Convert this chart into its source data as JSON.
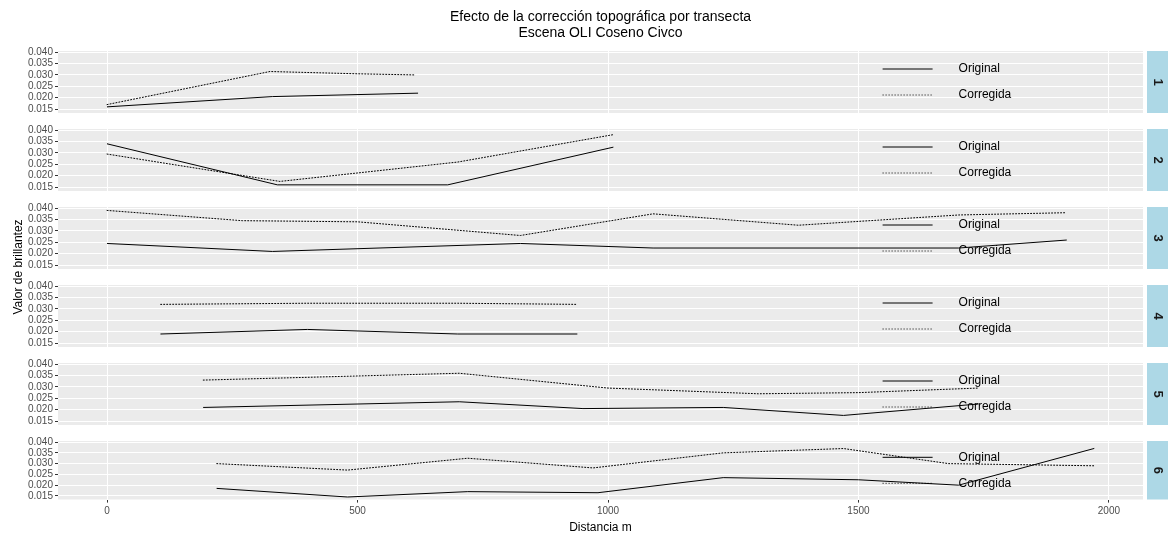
{
  "chart_data": [
    {
      "type": "line",
      "title": "Efecto de la corrección topográfica por transecta",
      "subtitle": "Escena OLI Coseno Civco",
      "annotations": [
        "1"
      ],
      "xlim": [
        -98,
        2068
      ],
      "xticks": [
        0,
        500,
        1000,
        1500,
        2000
      ],
      "ylim": [
        0.0133,
        0.0405
      ],
      "yticks": [
        {
          "value": 0.015,
          "label": "0.015"
        },
        {
          "value": 0.02,
          "label": "0.020"
        },
        {
          "value": 0.025,
          "label": "0.025"
        },
        {
          "value": 0.03,
          "label": "0.030"
        },
        {
          "value": 0.035,
          "label": "0.035"
        },
        {
          "value": 0.04,
          "label": "0.040"
        }
      ],
      "tick_labels": "y",
      "grid": true,
      "legend": "right",
      "marker": "none",
      "series": [
        {
          "name": "Original",
          "color": "#000000",
          "line_style": "solid",
          "x": [
            0,
            330,
            620
          ],
          "values": [
            0.016,
            0.0205,
            0.022
          ]
        },
        {
          "name": "Corregida",
          "color": "#000000",
          "line_style": "dotted",
          "x": [
            0,
            325,
            500,
            615
          ],
          "values": [
            0.017,
            0.0315,
            0.0305,
            0.03
          ]
        }
      ]
    },
    {
      "type": "line",
      "annotations": [
        "2"
      ],
      "xlim": [
        -98,
        2068
      ],
      "xticks": [
        0,
        500,
        1000,
        1500,
        2000
      ],
      "ylim": [
        0.0133,
        0.0405
      ],
      "yticks": [
        {
          "value": 0.015,
          "label": "0.015"
        },
        {
          "value": 0.02,
          "label": "0.020"
        },
        {
          "value": 0.025,
          "label": "0.025"
        },
        {
          "value": 0.03,
          "label": "0.030"
        },
        {
          "value": 0.035,
          "label": "0.035"
        },
        {
          "value": 0.04,
          "label": "0.040"
        }
      ],
      "tick_labels": "y",
      "grid": true,
      "legend": "right",
      "marker": "none",
      "series": [
        {
          "name": "Original",
          "color": "#000000",
          "line_style": "solid",
          "x": [
            0,
            340,
            680,
            1010
          ],
          "values": [
            0.034,
            0.016,
            0.016,
            0.0325
          ]
        },
        {
          "name": "Corregida",
          "color": "#000000",
          "line_style": "dotted",
          "x": [
            0,
            345,
            700,
            1010
          ],
          "values": [
            0.0295,
            0.0175,
            0.026,
            0.038
          ]
        }
      ]
    },
    {
      "type": "line",
      "annotations": [
        "3"
      ],
      "ylabel": "Valor de brillantez",
      "xlim": [
        -98,
        2068
      ],
      "xticks": [
        0,
        500,
        1000,
        1500,
        2000
      ],
      "ylim": [
        0.0133,
        0.0405
      ],
      "yticks": [
        {
          "value": 0.015,
          "label": "0.015"
        },
        {
          "value": 0.02,
          "label": "0.020"
        },
        {
          "value": 0.025,
          "label": "0.025"
        },
        {
          "value": 0.03,
          "label": "0.030"
        },
        {
          "value": 0.035,
          "label": "0.035"
        },
        {
          "value": 0.04,
          "label": "0.040"
        }
      ],
      "tick_labels": "y",
      "grid": true,
      "legend": "right",
      "marker": "none",
      "series": [
        {
          "name": "Original",
          "color": "#000000",
          "line_style": "solid",
          "x": [
            0,
            330,
            825,
            1090,
            1700,
            1915
          ],
          "values": [
            0.0245,
            0.021,
            0.0245,
            0.0225,
            0.0225,
            0.026
          ]
        },
        {
          "name": "Corregida",
          "color": "#000000",
          "line_style": "dotted",
          "x": [
            0,
            270,
            500,
            825,
            1090,
            1380,
            1700,
            1915
          ],
          "values": [
            0.039,
            0.0345,
            0.034,
            0.028,
            0.0375,
            0.0325,
            0.037,
            0.038
          ]
        }
      ]
    },
    {
      "type": "line",
      "annotations": [
        "4"
      ],
      "xlim": [
        -98,
        2068
      ],
      "xticks": [
        0,
        500,
        1000,
        1500,
        2000
      ],
      "ylim": [
        0.0133,
        0.0405
      ],
      "yticks": [
        {
          "value": 0.015,
          "label": "0.015"
        },
        {
          "value": 0.02,
          "label": "0.020"
        },
        {
          "value": 0.025,
          "label": "0.025"
        },
        {
          "value": 0.03,
          "label": "0.030"
        },
        {
          "value": 0.035,
          "label": "0.035"
        },
        {
          "value": 0.04,
          "label": "0.040"
        }
      ],
      "tick_labels": "y",
      "grid": true,
      "legend": "right",
      "marker": "none",
      "series": [
        {
          "name": "Original",
          "color": "#000000",
          "line_style": "solid",
          "x": [
            107,
            400,
            700,
            938
          ],
          "values": [
            0.019,
            0.021,
            0.019,
            0.019
          ]
        },
        {
          "name": "Corregida",
          "color": "#000000",
          "line_style": "dotted",
          "x": [
            107,
            400,
            700,
            938
          ],
          "values": [
            0.032,
            0.0325,
            0.0325,
            0.032
          ]
        }
      ]
    },
    {
      "type": "line",
      "annotations": [
        "5"
      ],
      "xlim": [
        -98,
        2068
      ],
      "xticks": [
        0,
        500,
        1000,
        1500,
        2000
      ],
      "ylim": [
        0.0133,
        0.0405
      ],
      "yticks": [
        {
          "value": 0.015,
          "label": "0.015"
        },
        {
          "value": 0.02,
          "label": "0.020"
        },
        {
          "value": 0.025,
          "label": "0.025"
        },
        {
          "value": 0.03,
          "label": "0.030"
        },
        {
          "value": 0.035,
          "label": "0.035"
        },
        {
          "value": 0.04,
          "label": "0.040"
        }
      ],
      "tick_labels": "y",
      "grid": true,
      "legend": "right",
      "marker": "none",
      "series": [
        {
          "name": "Original",
          "color": "#000000",
          "line_style": "solid",
          "x": [
            192,
            703,
            950,
            1230,
            1470,
            1739
          ],
          "values": [
            0.021,
            0.0235,
            0.0205,
            0.021,
            0.0175,
            0.0225
          ]
        },
        {
          "name": "Corregida",
          "color": "#000000",
          "line_style": "dotted",
          "x": [
            192,
            703,
            1000,
            1300,
            1500,
            1739
          ],
          "values": [
            0.033,
            0.036,
            0.0295,
            0.027,
            0.0275,
            0.0295
          ]
        }
      ]
    },
    {
      "type": "line",
      "annotations": [
        "6"
      ],
      "xlabel": "Distancia m",
      "xlim": [
        -98,
        2068
      ],
      "xticks": [
        0,
        500,
        1000,
        1500,
        2000
      ],
      "ylim": [
        0.0133,
        0.0405
      ],
      "yticks": [
        {
          "value": 0.015,
          "label": "0.015"
        },
        {
          "value": 0.02,
          "label": "0.020"
        },
        {
          "value": 0.025,
          "label": "0.025"
        },
        {
          "value": 0.03,
          "label": "0.030"
        },
        {
          "value": 0.035,
          "label": "0.035"
        },
        {
          "value": 0.04,
          "label": "0.040"
        }
      ],
      "grid": true,
      "legend": "right",
      "marker": "none",
      "series": [
        {
          "name": "Original",
          "color": "#000000",
          "line_style": "solid",
          "x": [
            219,
            480,
            720,
            980,
            1230,
            1500,
            1700,
            1970
          ],
          "values": [
            0.0185,
            0.0145,
            0.017,
            0.0165,
            0.0235,
            0.0225,
            0.02,
            0.037
          ]
        },
        {
          "name": "Corregida",
          "color": "#000000",
          "line_style": "dotted",
          "x": [
            219,
            480,
            720,
            970,
            1230,
            1470,
            1680,
            1970
          ],
          "values": [
            0.03,
            0.027,
            0.0325,
            0.028,
            0.035,
            0.037,
            0.03,
            0.029
          ]
        }
      ]
    }
  ]
}
